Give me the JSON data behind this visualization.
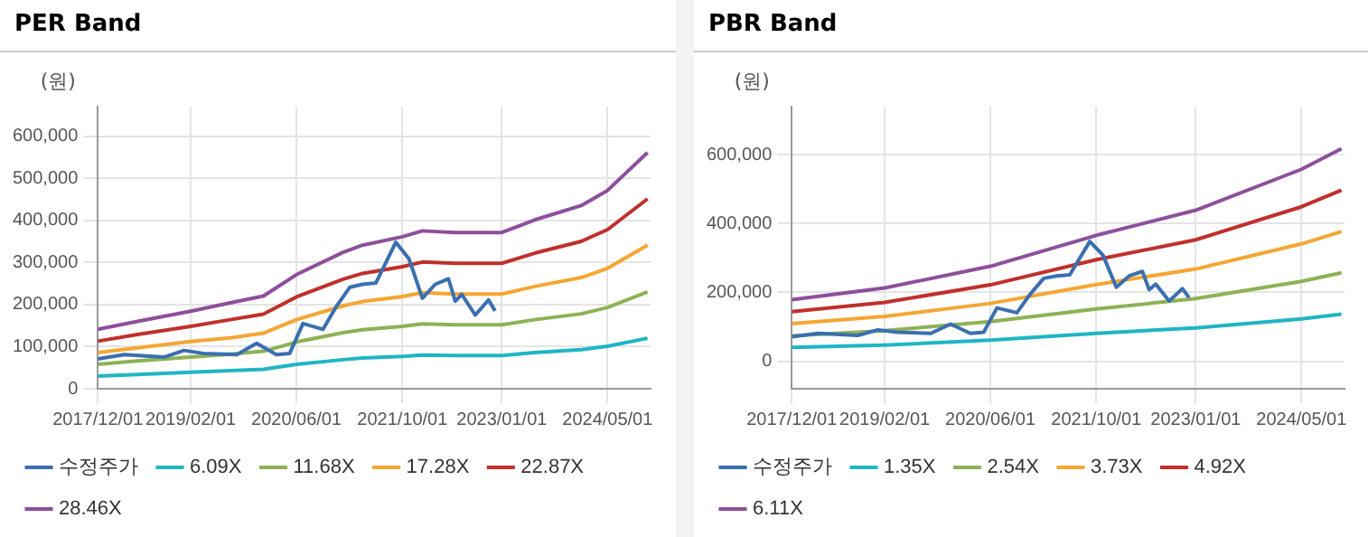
{
  "chart_data": [
    {
      "type": "line",
      "title": "PER Band",
      "ylabel": "(원)",
      "legend": "bottom",
      "grid": true,
      "marker": "none",
      "xlim": [
        "2017-12-01",
        "2024-11-15"
      ],
      "xticks": [
        {
          "value": "2017-12-01",
          "label": "2017/12/01"
        },
        {
          "value": "2019-02-01",
          "label": "2019/02/01"
        },
        {
          "value": "2020-06-01",
          "label": "2020/06/01"
        },
        {
          "value": "2021-10-01",
          "label": "2021/10/01"
        },
        {
          "value": "2023-01-01",
          "label": "2023/01/01"
        },
        {
          "value": "2024-05-01",
          "label": "2024/05/01"
        }
      ],
      "ylim": [
        0,
        670000
      ],
      "yticks": [
        0,
        {
          "value": 100000,
          "label": "100,000"
        },
        {
          "value": 200000,
          "label": "200,000"
        },
        {
          "value": 300000,
          "label": "300,000"
        },
        {
          "value": 400000,
          "label": "400,000"
        },
        {
          "value": 500000,
          "label": "500,000"
        },
        {
          "value": 600000,
          "label": "600,000"
        }
      ],
      "series": [
        {
          "name": "수정주가",
          "color": "#3a6fb0",
          "x": [
            "2017-12",
            "2018-04",
            "2018-10",
            "2019-01",
            "2019-04",
            "2019-09",
            "2019-12",
            "2020-03",
            "2020-05",
            "2020-07",
            "2020-10",
            "2020-12",
            "2021-02",
            "2021-04",
            "2021-06",
            "2021-09",
            "2021-11",
            "2022-01",
            "2022-03",
            "2022-05",
            "2022-06",
            "2022-07",
            "2022-09",
            "2022-11",
            "2022-12"
          ],
          "values": [
            71000,
            81000,
            75000,
            91000,
            84000,
            81000,
            108000,
            81000,
            84000,
            155000,
            141000,
            195000,
            241000,
            248000,
            251000,
            348000,
            308000,
            215000,
            248000,
            261000,
            208000,
            224000,
            175000,
            211000,
            185000
          ]
        },
        {
          "name": "6.09X",
          "color": "#1fb5c4",
          "x": [
            "2017-12",
            "2018-06",
            "2019-02",
            "2019-08",
            "2020-01",
            "2020-06",
            "2021-01",
            "2021-04",
            "2021-10",
            "2022-01",
            "2022-06",
            "2023-01",
            "2023-06",
            "2024-01",
            "2024-05",
            "2024-11"
          ],
          "values": [
            30000,
            34000,
            39000,
            43000,
            46000,
            58000,
            69000,
            73000,
            77000,
            80000,
            79000,
            79000,
            86000,
            93000,
            101000,
            120000
          ]
        },
        {
          "name": "11.68X",
          "color": "#8db255",
          "x": [
            "2017-12",
            "2018-06",
            "2019-02",
            "2019-08",
            "2020-01",
            "2020-06",
            "2021-01",
            "2021-04",
            "2021-10",
            "2022-01",
            "2022-06",
            "2023-01",
            "2023-06",
            "2024-01",
            "2024-05",
            "2024-11"
          ],
          "values": [
            58000,
            66000,
            75000,
            82000,
            89000,
            111000,
            133000,
            140000,
            148000,
            154000,
            152000,
            152000,
            164000,
            178000,
            193000,
            230000
          ]
        },
        {
          "name": "17.28X",
          "color": "#f5a633",
          "x": [
            "2017-12",
            "2018-06",
            "2019-02",
            "2019-08",
            "2020-01",
            "2020-06",
            "2021-01",
            "2021-04",
            "2021-10",
            "2022-01",
            "2022-06",
            "2023-01",
            "2023-06",
            "2024-01",
            "2024-05",
            "2024-11"
          ],
          "values": [
            86000,
            97000,
            112000,
            121000,
            132000,
            164000,
            197000,
            207000,
            219000,
            228000,
            225000,
            225000,
            243000,
            264000,
            286000,
            341000
          ]
        },
        {
          "name": "22.87X",
          "color": "#c0302b",
          "x": [
            "2017-12",
            "2018-06",
            "2019-02",
            "2019-08",
            "2020-01",
            "2020-06",
            "2021-01",
            "2021-04",
            "2021-10",
            "2022-01",
            "2022-06",
            "2023-01",
            "2023-06",
            "2024-01",
            "2024-05",
            "2024-11"
          ],
          "values": [
            113000,
            129000,
            148000,
            164000,
            177000,
            218000,
            260000,
            274000,
            290000,
            301000,
            298000,
            298000,
            322000,
            350000,
            378000,
            451000
          ]
        },
        {
          "name": "28.46X",
          "color": "#8e4f9c",
          "x": [
            "2017-12",
            "2018-06",
            "2019-02",
            "2019-08",
            "2020-01",
            "2020-06",
            "2021-01",
            "2021-04",
            "2021-10",
            "2022-01",
            "2022-06",
            "2023-01",
            "2023-06",
            "2024-01",
            "2024-05",
            "2024-11"
          ],
          "values": [
            141000,
            160000,
            184000,
            204000,
            220000,
            271000,
            324000,
            341000,
            361000,
            375000,
            371000,
            371000,
            401000,
            435000,
            471000,
            561000
          ]
        }
      ]
    },
    {
      "type": "line",
      "title": "PBR Band",
      "ylabel": "(원)",
      "legend": "bottom",
      "grid": true,
      "marker": "none",
      "xlim": [
        "2017-12-01",
        "2024-11-15"
      ],
      "xticks": [
        {
          "value": "2017-12-01",
          "label": "2017/12/01"
        },
        {
          "value": "2019-02-01",
          "label": "2019/02/01"
        },
        {
          "value": "2020-06-01",
          "label": "2020/06/01"
        },
        {
          "value": "2021-10-01",
          "label": "2021/10/01"
        },
        {
          "value": "2023-01-01",
          "label": "2023/01/01"
        },
        {
          "value": "2024-05-01",
          "label": "2024/05/01"
        }
      ],
      "ylim": [
        -80000,
        740000
      ],
      "yticks": [
        0,
        {
          "value": 200000,
          "label": "200,000"
        },
        {
          "value": 400000,
          "label": "400,000"
        },
        {
          "value": 600000,
          "label": "600,000"
        }
      ],
      "series": [
        {
          "name": "수정주가",
          "color": "#3a6fb0",
          "x": [
            "2017-12",
            "2018-04",
            "2018-10",
            "2019-01",
            "2019-04",
            "2019-09",
            "2019-12",
            "2020-03",
            "2020-05",
            "2020-07",
            "2020-10",
            "2020-12",
            "2021-02",
            "2021-04",
            "2021-06",
            "2021-09",
            "2021-11",
            "2022-01",
            "2022-03",
            "2022-05",
            "2022-06",
            "2022-07",
            "2022-09",
            "2022-11",
            "2022-12"
          ],
          "values": [
            71000,
            81000,
            75000,
            91000,
            84000,
            81000,
            108000,
            81000,
            84000,
            155000,
            141000,
            195000,
            241000,
            248000,
            251000,
            348000,
            308000,
            215000,
            248000,
            261000,
            208000,
            224000,
            175000,
            211000,
            185000
          ]
        },
        {
          "name": "1.35X",
          "color": "#1fb5c4",
          "x": [
            "2017-12",
            "2019-02",
            "2020-06",
            "2021-10",
            "2023-01",
            "2024-05",
            "2024-11"
          ],
          "values": [
            40000,
            47000,
            61000,
            81000,
            97000,
            123000,
            137000
          ]
        },
        {
          "name": "2.54X",
          "color": "#8db255",
          "x": [
            "2017-12",
            "2019-02",
            "2020-06",
            "2021-10",
            "2023-01",
            "2024-05",
            "2024-11"
          ],
          "values": [
            74000,
            89000,
            115000,
            152000,
            182000,
            232000,
            257000
          ]
        },
        {
          "name": "3.73X",
          "color": "#f5a633",
          "x": [
            "2017-12",
            "2019-02",
            "2020-06",
            "2021-10",
            "2023-01",
            "2024-05",
            "2024-11"
          ],
          "values": [
            109000,
            130000,
            168000,
            223000,
            268000,
            341000,
            377000
          ]
        },
        {
          "name": "4.92X",
          "color": "#c0302b",
          "x": [
            "2017-12",
            "2019-02",
            "2020-06",
            "2021-10",
            "2023-01",
            "2024-05",
            "2024-11"
          ],
          "values": [
            144000,
            171000,
            222000,
            295000,
            353000,
            449000,
            497000
          ]
        },
        {
          "name": "6.11X",
          "color": "#8e4f9c",
          "x": [
            "2017-12",
            "2019-02",
            "2020-06",
            "2021-10",
            "2023-01",
            "2024-05",
            "2024-11"
          ],
          "values": [
            179000,
            213000,
            276000,
            366000,
            439000,
            558000,
            618000
          ]
        }
      ]
    }
  ]
}
